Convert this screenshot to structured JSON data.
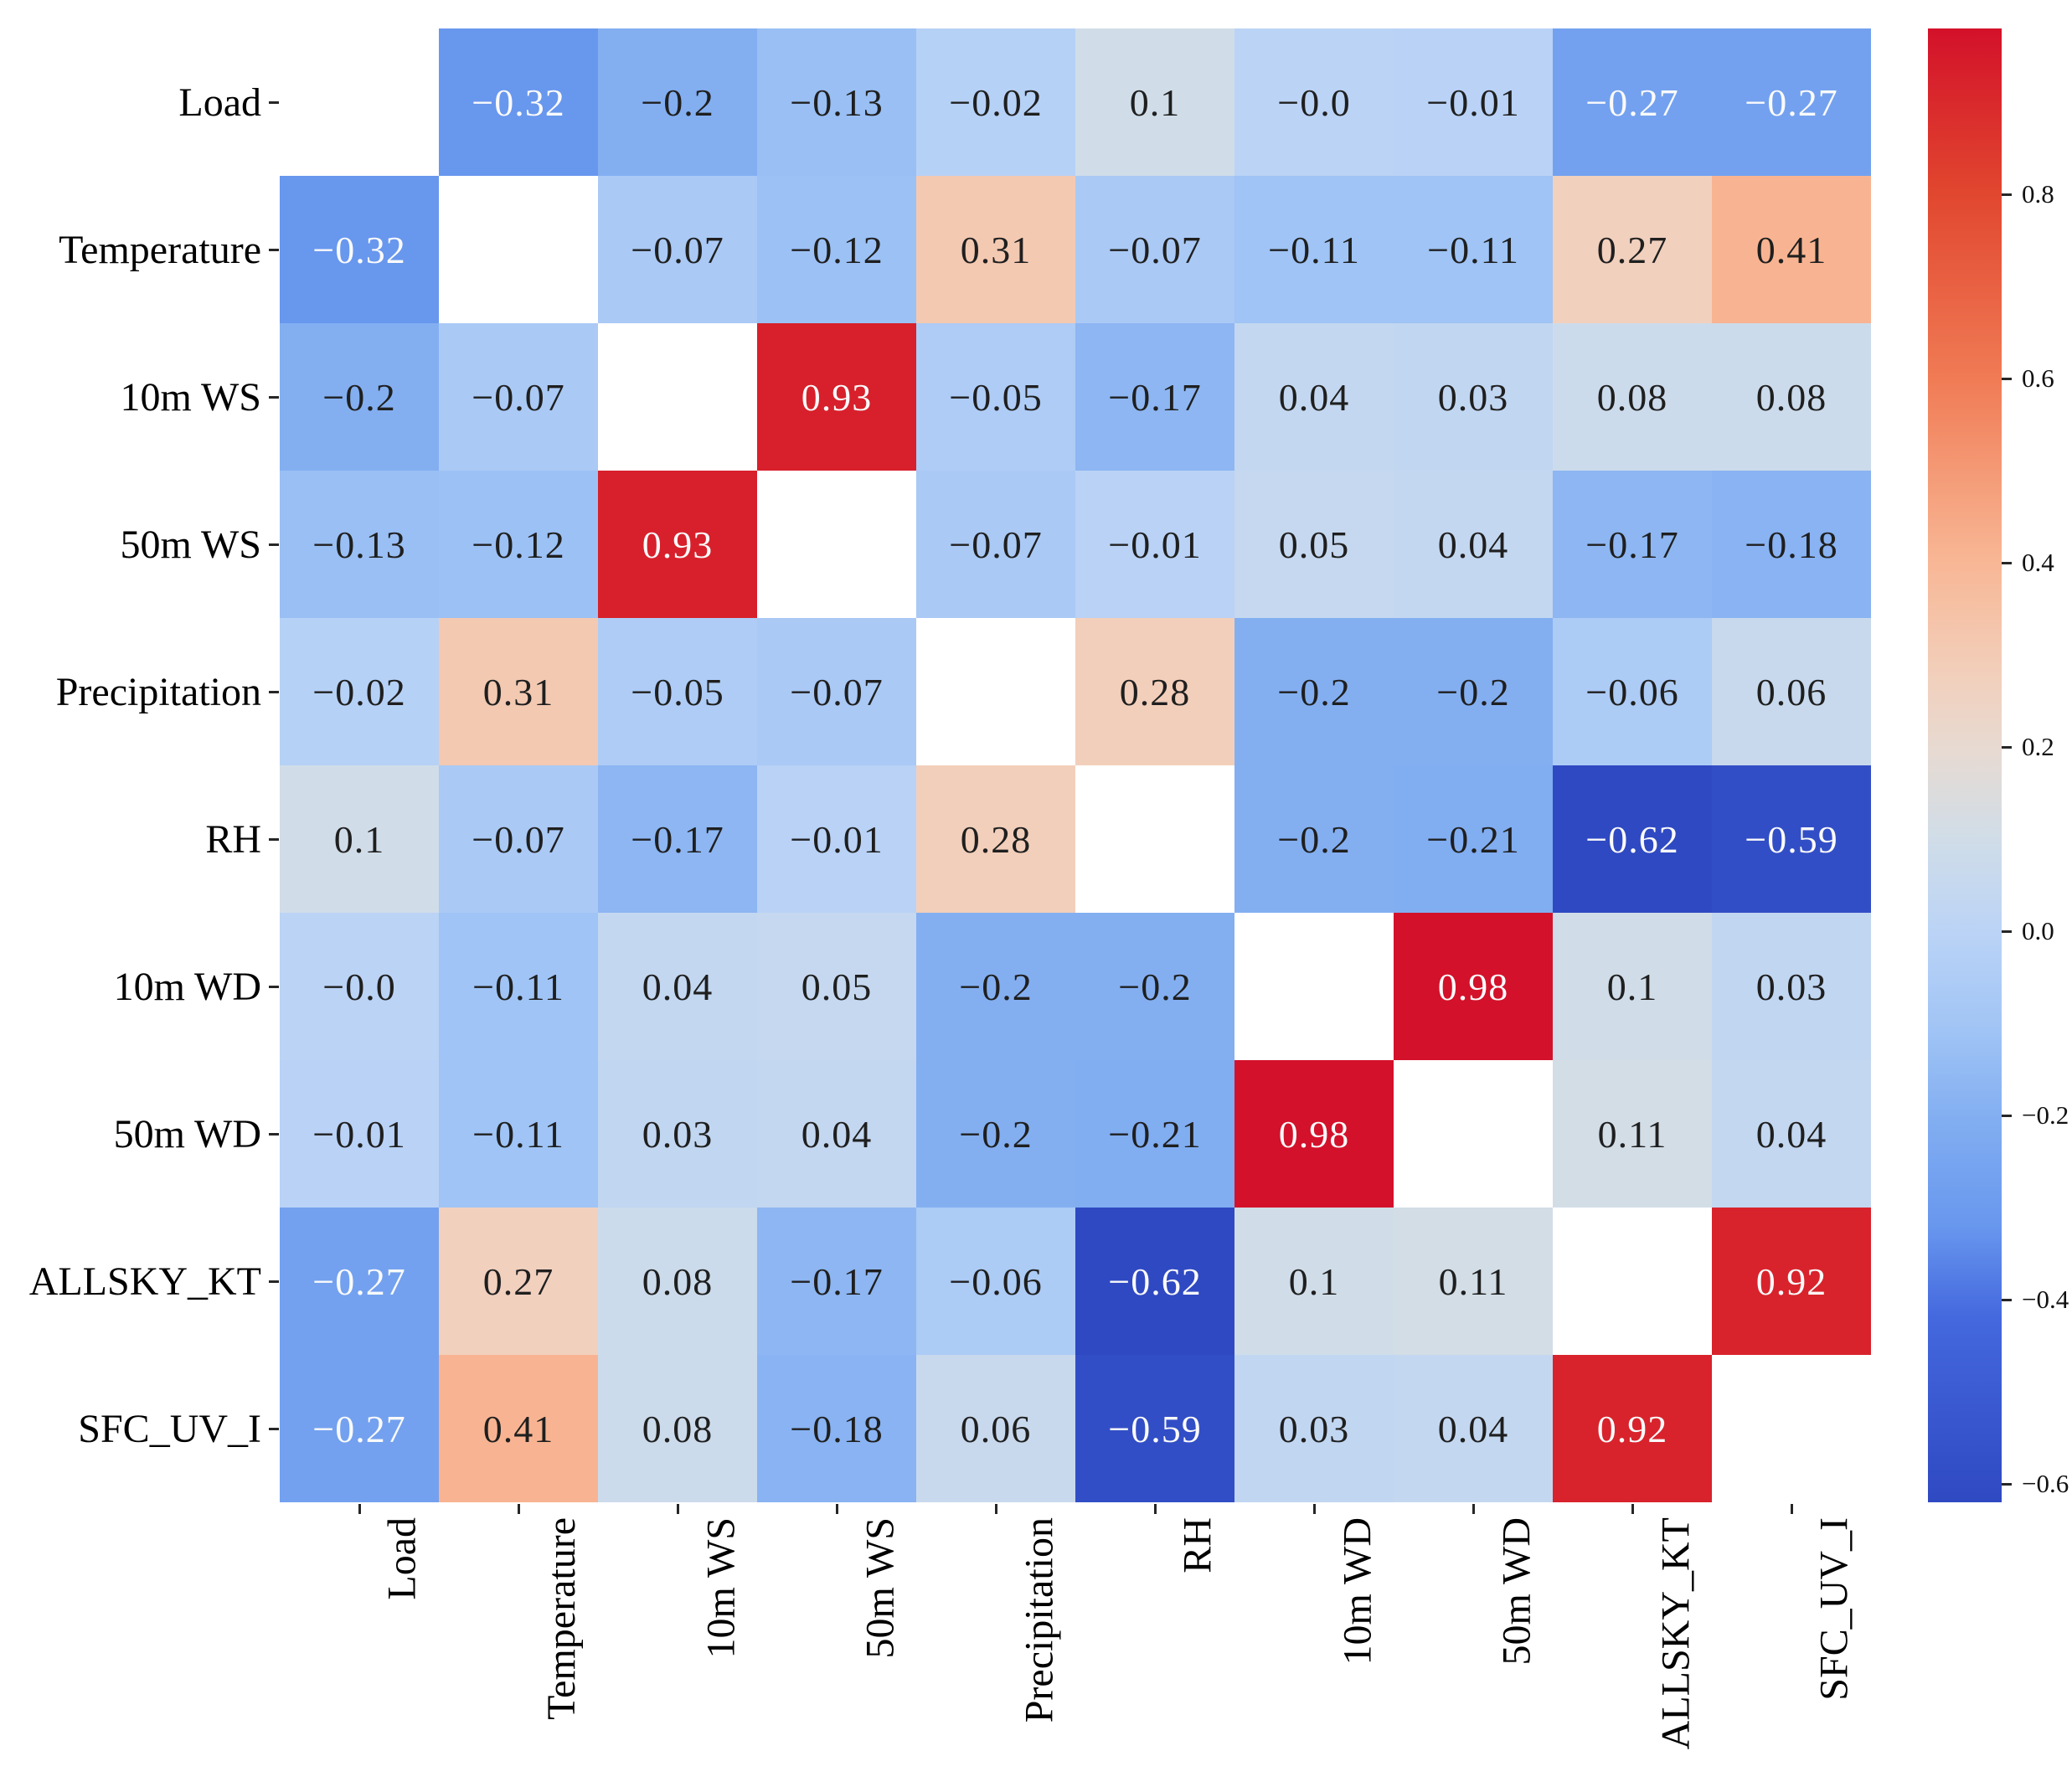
{
  "figure": {
    "background": "#ffffff",
    "description": "Correlation matrix heatmap of load and weather variables with diagonal masked"
  },
  "chart_data": {
    "type": "heatmap",
    "title": "",
    "xlabel": "",
    "ylabel": "",
    "legend_position": "colorbar-right",
    "grid": false,
    "categories": [
      "Load",
      "Temperature",
      "10m WS",
      "50m WS",
      "Precipitation",
      "RH",
      "10m WD",
      "50m WD",
      "ALLSKY_KT",
      "SFC_UV_I"
    ],
    "matrix": [
      [
        null,
        "−0.32",
        "−0.2",
        "−0.13",
        "−0.02",
        "0.1",
        "−0.0",
        "−0.01",
        "−0.27",
        "−0.27"
      ],
      [
        "−0.32",
        null,
        "−0.07",
        "−0.12",
        "0.31",
        "−0.07",
        "−0.11",
        "−0.11",
        "0.27",
        "0.41"
      ],
      [
        "−0.2",
        "−0.07",
        null,
        "0.93",
        "−0.05",
        "−0.17",
        "0.04",
        "0.03",
        "0.08",
        "0.08"
      ],
      [
        "−0.13",
        "−0.12",
        "0.93",
        null,
        "−0.07",
        "−0.01",
        "0.05",
        "0.04",
        "−0.17",
        "−0.18"
      ],
      [
        "−0.02",
        "0.31",
        "−0.05",
        "−0.07",
        null,
        "0.28",
        "−0.2",
        "−0.2",
        "−0.06",
        "0.06"
      ],
      [
        "0.1",
        "−0.07",
        "−0.17",
        "−0.01",
        "0.28",
        null,
        "−0.2",
        "−0.21",
        "−0.62",
        "−0.59"
      ],
      [
        "−0.0",
        "−0.11",
        "0.04",
        "0.05",
        "−0.2",
        "−0.2",
        null,
        "0.98",
        "0.1",
        "0.03"
      ],
      [
        "−0.01",
        "−0.11",
        "0.03",
        "0.04",
        "−0.2",
        "−0.21",
        "0.98",
        null,
        "0.11",
        "0.04"
      ],
      [
        "−0.27",
        "0.27",
        "0.08",
        "−0.17",
        "−0.06",
        "−0.62",
        "0.1",
        "0.11",
        null,
        "0.92"
      ],
      [
        "−0.27",
        "0.41",
        "0.08",
        "−0.18",
        "0.06",
        "−0.59",
        "0.03",
        "0.04",
        "0.92",
        null
      ]
    ],
    "diagonal_masked": true,
    "colormap": {
      "name": "coolwarm-like diverging blue-white-red",
      "vmin": -0.62,
      "vmax": 0.98,
      "anchors": [
        {
          "t": 0.0,
          "color": "#2F49C2"
        },
        {
          "t": 0.125,
          "color": "#4468DE"
        },
        {
          "t": 0.1875,
          "color": "#6897EE"
        },
        {
          "t": 0.26,
          "color": "#82AEF1"
        },
        {
          "t": 0.32,
          "color": "#A0C4F5"
        },
        {
          "t": 0.385,
          "color": "#BAD3F6"
        },
        {
          "t": 0.45,
          "color": "#D0DDE8"
        },
        {
          "t": 0.51,
          "color": "#E7DAD2"
        },
        {
          "t": 0.5625,
          "color": "#F2CFBB"
        },
        {
          "t": 0.64,
          "color": "#F8B694"
        },
        {
          "t": 0.7625,
          "color": "#F07B55"
        },
        {
          "t": 0.8875,
          "color": "#E1472F"
        },
        {
          "t": 1.0,
          "color": "#D3112A"
        }
      ]
    },
    "colorbar": {
      "tick_labels": [
        "0.8",
        "0.6",
        "0.4",
        "0.2",
        "0.0",
        "−0.2",
        "−0.4",
        "−0.6"
      ],
      "tick_values": [
        0.8,
        0.6,
        0.4,
        0.2,
        0.0,
        -0.2,
        -0.4,
        -0.6
      ]
    },
    "annotation_text_colors": {
      "light": "#fafafa",
      "dark": "#1f1f1f"
    }
  }
}
